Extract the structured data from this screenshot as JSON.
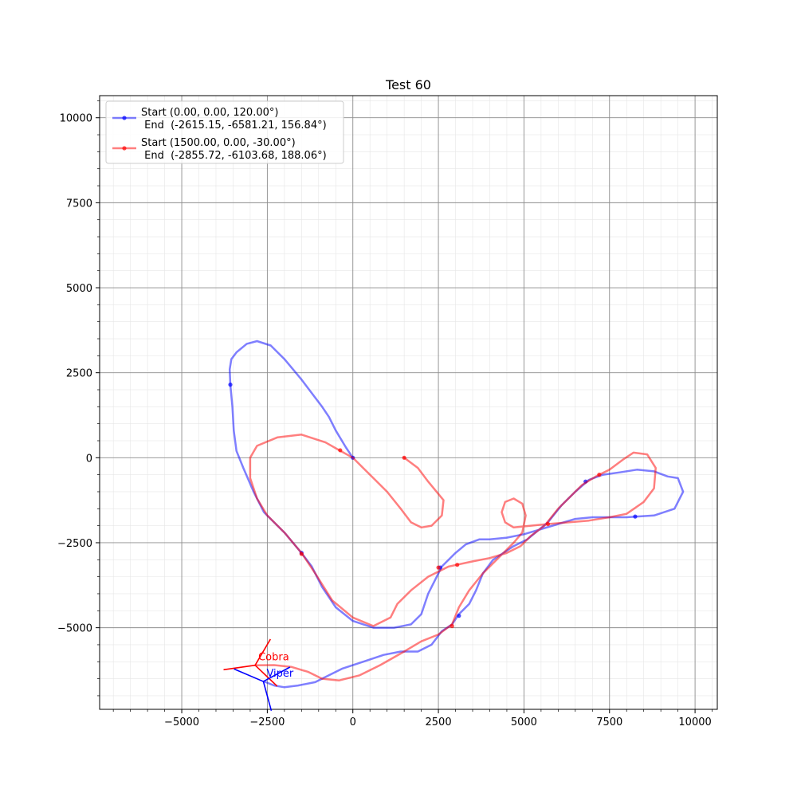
{
  "chart_data": {
    "type": "line",
    "title": "Test 60",
    "xlabel": "",
    "ylabel": "",
    "xlim": [
      -7400,
      10650
    ],
    "ylim": [
      -7400,
      10650
    ],
    "x_ticks": [
      -5000,
      -2500,
      0,
      2500,
      5000,
      7500,
      10000
    ],
    "y_ticks": [
      -5000,
      -2500,
      0,
      2500,
      5000,
      7500,
      10000
    ],
    "x_tick_labels": [
      "−5000",
      "−2500",
      "0",
      "2500",
      "5000",
      "7500",
      "10000"
    ],
    "y_tick_labels": [
      "−5000",
      "−2500",
      "0",
      "2500",
      "5000",
      "7500",
      "10000"
    ],
    "minor_step": 500,
    "grid": true,
    "legend_placement": "top-left",
    "series": [
      {
        "name": "Start (0.00, 0.00, 120.00°)\n End  (-2615.15, -6581.21, 156.84°)",
        "color": "#0000ff",
        "points": [
          [
            0,
            0
          ],
          [
            -200,
            300
          ],
          [
            -500,
            800
          ],
          [
            -700,
            1200
          ],
          [
            -900,
            1500
          ],
          [
            -1500,
            2300
          ],
          [
            -2000,
            2900
          ],
          [
            -2400,
            3300
          ],
          [
            -2800,
            3430
          ],
          [
            -3100,
            3350
          ],
          [
            -3400,
            3100
          ],
          [
            -3550,
            2900
          ],
          [
            -3600,
            2600
          ],
          [
            -3580,
            2150
          ],
          [
            -3520,
            1500
          ],
          [
            -3480,
            800
          ],
          [
            -3400,
            200
          ],
          [
            -3200,
            -300
          ],
          [
            -2900,
            -1000
          ],
          [
            -2600,
            -1600
          ],
          [
            -2000,
            -2200
          ],
          [
            -1500,
            -2800
          ],
          [
            -1200,
            -3200
          ],
          [
            -900,
            -3800
          ],
          [
            -500,
            -4400
          ],
          [
            0,
            -4800
          ],
          [
            600,
            -5000
          ],
          [
            1200,
            -5000
          ],
          [
            1700,
            -4900
          ],
          [
            2000,
            -4600
          ],
          [
            2200,
            -4000
          ],
          [
            2400,
            -3600
          ],
          [
            2600,
            -3200
          ],
          [
            3000,
            -2800
          ],
          [
            3300,
            -2550
          ],
          [
            3700,
            -2400
          ],
          [
            4000,
            -2400
          ],
          [
            4500,
            -2350
          ],
          [
            5000,
            -2250
          ],
          [
            5500,
            -2100
          ],
          [
            6000,
            -1950
          ],
          [
            6500,
            -1800
          ],
          [
            7000,
            -1750
          ],
          [
            7500,
            -1750
          ],
          [
            8000,
            -1750
          ],
          [
            8300,
            -1730
          ],
          [
            8800,
            -1700
          ],
          [
            9400,
            -1500
          ],
          [
            9650,
            -1000
          ],
          [
            9500,
            -600
          ],
          [
            9200,
            -550
          ],
          [
            8800,
            -400
          ],
          [
            8300,
            -350
          ],
          [
            7800,
            -430
          ],
          [
            7300,
            -500
          ],
          [
            6900,
            -650
          ],
          [
            6500,
            -1000
          ],
          [
            6100,
            -1400
          ],
          [
            5700,
            -1900
          ],
          [
            5100,
            -2400
          ],
          [
            4700,
            -2600
          ],
          [
            4100,
            -3000
          ],
          [
            3800,
            -3400
          ],
          [
            3600,
            -3900
          ],
          [
            3400,
            -4300
          ],
          [
            3100,
            -4600
          ],
          [
            2900,
            -4900
          ],
          [
            2600,
            -5100
          ],
          [
            2300,
            -5500
          ],
          [
            1900,
            -5700
          ],
          [
            1400,
            -5700
          ],
          [
            900,
            -5800
          ],
          [
            300,
            -6000
          ],
          [
            -300,
            -6200
          ],
          [
            -700,
            -6400
          ],
          [
            -1100,
            -6600
          ],
          [
            -1600,
            -6700
          ],
          [
            -2000,
            -6750
          ],
          [
            -2300,
            -6700
          ],
          [
            -2600,
            -6580
          ]
        ],
        "markers": [
          [
            0,
            0
          ],
          [
            -3580,
            2150
          ],
          [
            -1500,
            -2800
          ],
          [
            2550,
            -3230
          ],
          [
            3100,
            -4650
          ],
          [
            6800,
            -700
          ],
          [
            8250,
            -1730
          ]
        ]
      },
      {
        "name": "Start (1500.00, 0.00, -30.00°)\n End  (-2855.72, -6103.68, 188.06°)",
        "color": "#ff0000",
        "points": [
          [
            1500,
            0
          ],
          [
            1900,
            -300
          ],
          [
            2200,
            -700
          ],
          [
            2650,
            -1250
          ],
          [
            2600,
            -1700
          ],
          [
            2300,
            -2000
          ],
          [
            2000,
            -2050
          ],
          [
            1700,
            -1900
          ],
          [
            1400,
            -1500
          ],
          [
            1000,
            -1000
          ],
          [
            600,
            -600
          ],
          [
            300,
            -300
          ],
          [
            0,
            0
          ],
          [
            -400,
            220
          ],
          [
            -800,
            450
          ],
          [
            -1500,
            680
          ],
          [
            -2200,
            600
          ],
          [
            -2800,
            350
          ],
          [
            -3000,
            0
          ],
          [
            -3000,
            -600
          ],
          [
            -2800,
            -1200
          ],
          [
            -2500,
            -1700
          ],
          [
            -2000,
            -2200
          ],
          [
            -1500,
            -2800
          ],
          [
            -1100,
            -3400
          ],
          [
            -600,
            -4200
          ],
          [
            0,
            -4700
          ],
          [
            600,
            -4950
          ],
          [
            1100,
            -4700
          ],
          [
            1300,
            -4300
          ],
          [
            1700,
            -3900
          ],
          [
            2200,
            -3500
          ],
          [
            2800,
            -3200
          ],
          [
            3500,
            -3050
          ],
          [
            4000,
            -2950
          ],
          [
            4500,
            -2800
          ],
          [
            4900,
            -2600
          ],
          [
            5200,
            -2300
          ],
          [
            5600,
            -2000
          ],
          [
            6000,
            -1500
          ],
          [
            6300,
            -1200
          ],
          [
            6700,
            -800
          ],
          [
            7100,
            -550
          ],
          [
            7500,
            -350
          ],
          [
            7900,
            -50
          ],
          [
            8200,
            150
          ],
          [
            8600,
            100
          ],
          [
            8850,
            -300
          ],
          [
            8800,
            -900
          ],
          [
            8500,
            -1300
          ],
          [
            8000,
            -1650
          ],
          [
            7500,
            -1750
          ],
          [
            6900,
            -1850
          ],
          [
            6300,
            -1900
          ],
          [
            5700,
            -1950
          ],
          [
            5200,
            -2000
          ],
          [
            4700,
            -2050
          ],
          [
            4450,
            -1900
          ],
          [
            4350,
            -1600
          ],
          [
            4450,
            -1300
          ],
          [
            4700,
            -1200
          ],
          [
            4950,
            -1350
          ],
          [
            5050,
            -1700
          ],
          [
            4950,
            -2200
          ],
          [
            4700,
            -2500
          ],
          [
            4300,
            -2900
          ],
          [
            3800,
            -3400
          ],
          [
            3400,
            -3900
          ],
          [
            3100,
            -4400
          ],
          [
            2900,
            -4900
          ],
          [
            2500,
            -5200
          ],
          [
            2000,
            -5400
          ],
          [
            1500,
            -5700
          ],
          [
            800,
            -6100
          ],
          [
            200,
            -6400
          ],
          [
            -400,
            -6550
          ],
          [
            -900,
            -6500
          ],
          [
            -1300,
            -6300
          ],
          [
            -1800,
            -6150
          ],
          [
            -2300,
            -6100
          ],
          [
            -2855,
            -6103
          ]
        ],
        "markers": [
          [
            1500,
            0
          ],
          [
            -370,
            220
          ],
          [
            -1500,
            -2830
          ],
          [
            2500,
            -3230
          ],
          [
            3050,
            -3150
          ],
          [
            2900,
            -4950
          ],
          [
            5700,
            -1950
          ],
          [
            7200,
            -500
          ]
        ]
      }
    ],
    "annotations": [
      {
        "label": "Cobra",
        "color": "#ff0000",
        "x": -2855.72,
        "y": -6103.68,
        "heading": 188.06
      },
      {
        "label": "Viper",
        "color": "#0000ff",
        "x": -2615.15,
        "y": -6581.21,
        "heading": 156.84
      }
    ]
  }
}
